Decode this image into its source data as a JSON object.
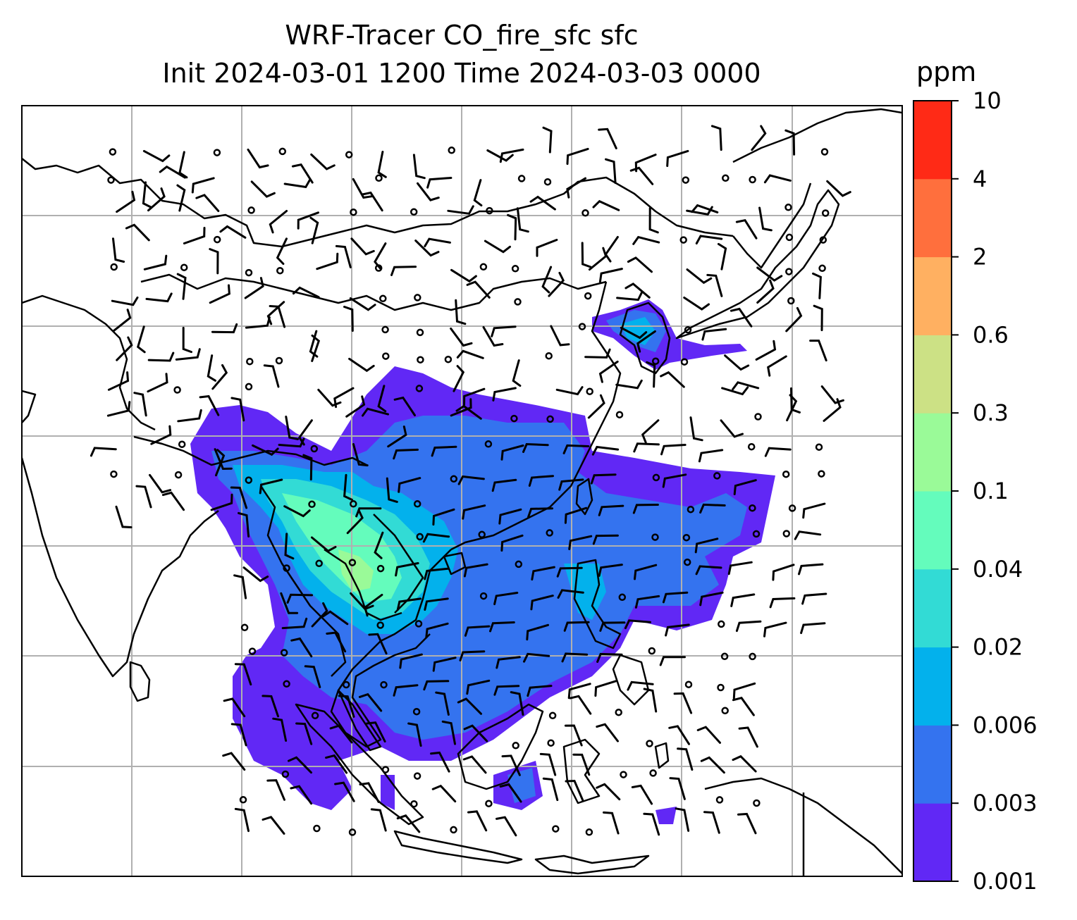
{
  "title": {
    "line1": "WRF-Tracer CO_fire_sfc sfc",
    "line2": "Init 2024-03-01 1200 Time 2024-03-03 0000"
  },
  "colorbar": {
    "units": "ppm",
    "levels": [
      "0.001",
      "0.003",
      "0.006",
      "0.02",
      "0.04",
      "0.1",
      "0.3",
      "0.6",
      "2",
      "4",
      "10"
    ],
    "colors": [
      "#6128f5",
      "#3473ef",
      "#03b1ec",
      "#32dbd5",
      "#64fcbc",
      "#9afa98",
      "#cce185",
      "#ffb061",
      "#ff6f3d",
      "#ff2a16"
    ]
  },
  "map": {
    "background": "#ffffff",
    "coastline_color": "#000000",
    "grid_color": "#b0b0b0"
  }
}
